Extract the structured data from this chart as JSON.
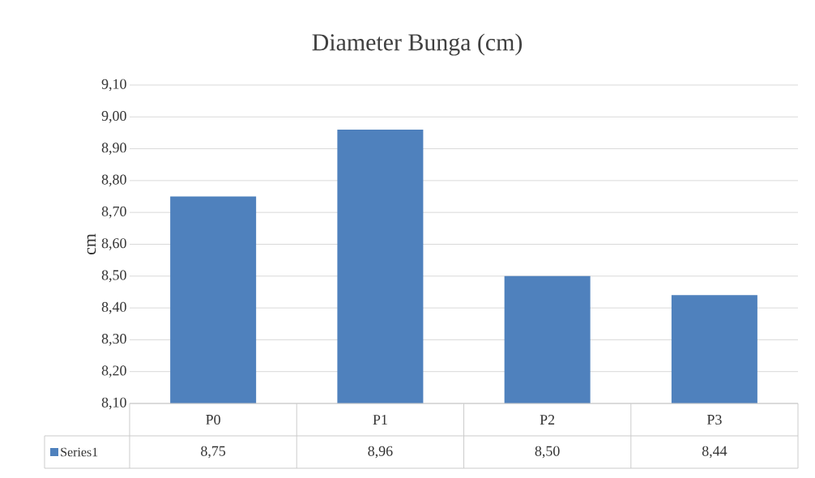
{
  "chart_data": {
    "type": "bar",
    "title": "Diameter Bunga (cm)",
    "ylabel": "cm",
    "categories": [
      "P0",
      "P1",
      "P2",
      "P3"
    ],
    "series": [
      {
        "name": "Series1",
        "color": "#4f81bd",
        "values": [
          8.75,
          8.96,
          8.5,
          8.44
        ],
        "value_labels": [
          "8,75",
          "8,96",
          "8,50",
          "8,44"
        ]
      }
    ],
    "ylim": [
      8.1,
      9.1
    ],
    "yticks": [
      {
        "value": 8.1,
        "label": "8,10"
      },
      {
        "value": 8.2,
        "label": "8,20"
      },
      {
        "value": 8.3,
        "label": "8,30"
      },
      {
        "value": 8.4,
        "label": "8,40"
      },
      {
        "value": 8.5,
        "label": "8,50"
      },
      {
        "value": 8.6,
        "label": "8,60"
      },
      {
        "value": 8.7,
        "label": "8,70"
      },
      {
        "value": 8.8,
        "label": "8,80"
      },
      {
        "value": 8.9,
        "label": "8,90"
      },
      {
        "value": 9.0,
        "label": "9,00"
      },
      {
        "value": 9.1,
        "label": "9,10"
      }
    ],
    "grid": "y",
    "legend": "bottom"
  }
}
